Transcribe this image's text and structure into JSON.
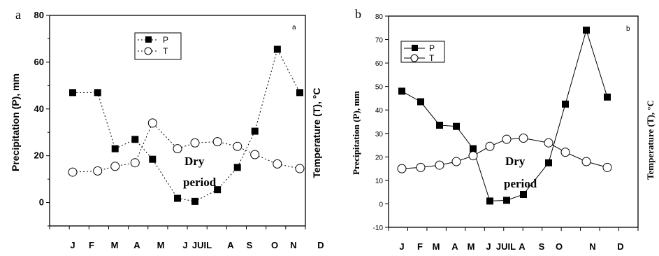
{
  "chart_data": [
    {
      "type": "line",
      "panel_label": "a",
      "inner_label": "a",
      "categories": [
        "J",
        "F",
        "M",
        "A",
        "M",
        "J",
        "JUIL",
        "A",
        "S",
        "O",
        "N",
        "D"
      ],
      "ylabel": "Precipitation (P), mm",
      "ylabel2": "Temperature (T), °C",
      "ylim": [
        -10,
        80
      ],
      "yticks": [
        0,
        20,
        40,
        60,
        80
      ],
      "legend_position": "top-center",
      "line_style": "dotted",
      "annotation": [
        "Dry",
        "period"
      ],
      "series": [
        {
          "name": "P",
          "marker": "filled-square",
          "x": [
            0,
            1,
            1.7,
            2.5,
            3.2,
            4.2,
            4.9,
            5.8,
            6.6,
            7.3,
            8.2,
            9.1
          ],
          "values": [
            47,
            47,
            23,
            27,
            18.5,
            1.8,
            0.5,
            5.5,
            15,
            30.5,
            65.5,
            47
          ]
        },
        {
          "name": "T",
          "marker": "open-circle",
          "x": [
            0,
            1,
            1.7,
            2.5,
            3.2,
            4.2,
            4.9,
            5.8,
            6.6,
            7.3,
            8.2,
            9.1
          ],
          "values": [
            13,
            13.5,
            15.5,
            17,
            34,
            23,
            25.5,
            26,
            24,
            20.5,
            16.5,
            14.5
          ]
        }
      ]
    },
    {
      "type": "line",
      "panel_label": "b",
      "inner_label": "b",
      "categories": [
        "J",
        "F",
        "M",
        "A",
        "M",
        "J",
        "JUIL",
        "A",
        "S",
        "O",
        "N",
        "D"
      ],
      "ylabel": "Precipitation (P), mm",
      "ylabel2": "Temperature (T), °C",
      "ylim": [
        -10,
        80
      ],
      "yticks": [
        -10,
        0,
        10,
        20,
        30,
        40,
        50,
        60,
        70,
        80
      ],
      "legend_position": "top-left",
      "line_style": "solid",
      "annotation": [
        "Dry",
        "period"
      ],
      "series": [
        {
          "name": "P",
          "marker": "filled-square",
          "x": [
            0,
            0.9,
            1.8,
            2.6,
            3.4,
            4.2,
            5,
            5.8,
            7,
            7.8,
            8.8,
            9.8
          ],
          "values": [
            48,
            43.5,
            33.5,
            33,
            23.5,
            1.2,
            1.5,
            4,
            17.5,
            42.5,
            74,
            45.5
          ]
        },
        {
          "name": "T",
          "marker": "open-circle",
          "x": [
            0,
            0.9,
            1.8,
            2.6,
            3.4,
            4.2,
            5,
            5.8,
            7,
            7.8,
            8.8,
            9.8
          ],
          "values": [
            15,
            15.5,
            16.5,
            18,
            20.5,
            24.5,
            27.5,
            28,
            26,
            22,
            18,
            15.5
          ]
        }
      ]
    }
  ]
}
